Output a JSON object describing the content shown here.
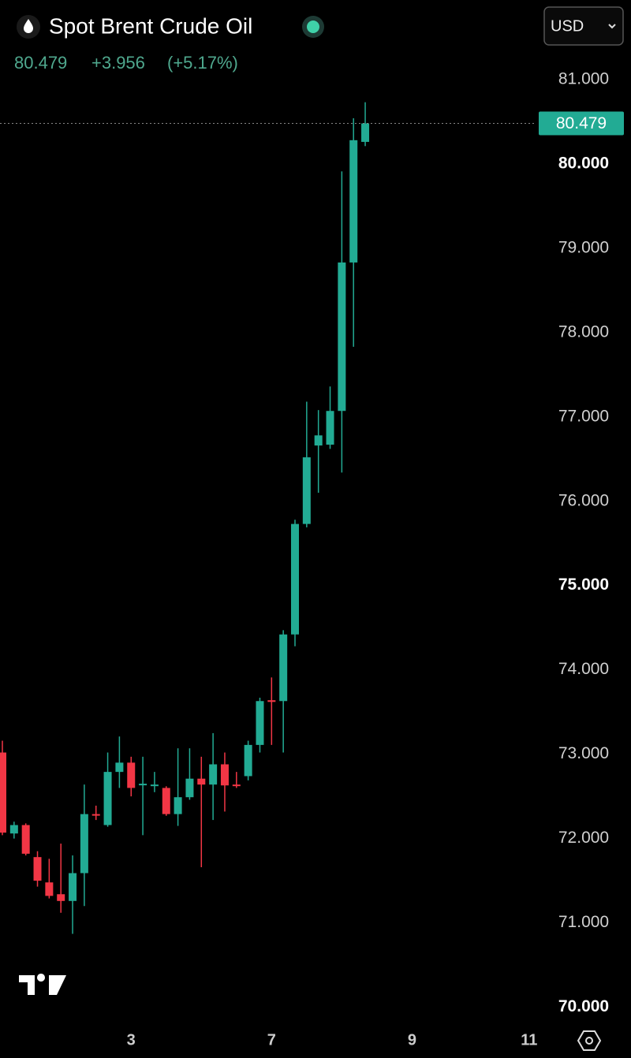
{
  "chart_data": {
    "type": "candlestick",
    "title": "Spot Brent Crude Oil",
    "last_price": 80.479,
    "change": {
      "value": 3.956,
      "label": "+3.956"
    },
    "change_pct": {
      "value": 5.17,
      "label": "(+5.17%)"
    },
    "currency": "USD",
    "up_color": "#22ab94",
    "down_color": "#f23645",
    "x": [
      0,
      1,
      2,
      3,
      4,
      5,
      6,
      7,
      8,
      9,
      10,
      11,
      12,
      13,
      14,
      15,
      16,
      17,
      18,
      19,
      20,
      21,
      22,
      23,
      24,
      25,
      26,
      27,
      28,
      29,
      30,
      31
    ],
    "open": [
      73.02,
      72.06,
      72.16,
      71.78,
      71.48,
      71.34,
      71.26,
      71.59,
      72.29,
      72.16,
      72.79,
      72.9,
      72.64,
      72.64,
      72.6,
      72.29,
      72.49,
      72.71,
      72.64,
      72.88,
      72.64,
      72.74,
      73.11,
      73.64,
      73.63,
      74.42,
      75.73,
      76.66,
      76.67,
      77.07,
      78.83,
      80.26
    ],
    "high": [
      73.16,
      72.2,
      72.18,
      71.85,
      71.76,
      71.94,
      71.8,
      72.64,
      72.39,
      73.02,
      73.21,
      72.97,
      72.97,
      72.79,
      72.62,
      73.07,
      73.07,
      72.97,
      73.25,
      73.02,
      72.79,
      73.16,
      73.67,
      73.91,
      74.47,
      75.78,
      77.18,
      77.08,
      77.36,
      79.91,
      80.54,
      80.73
    ],
    "low": [
      72.04,
      72.0,
      71.8,
      71.43,
      71.29,
      71.12,
      70.87,
      71.2,
      72.22,
      72.14,
      72.6,
      72.5,
      72.04,
      72.55,
      72.27,
      72.15,
      72.46,
      71.66,
      72.22,
      72.32,
      72.6,
      72.69,
      73.02,
      73.11,
      73.02,
      74.28,
      75.69,
      76.1,
      76.62,
      76.34,
      77.83,
      80.21
    ],
    "close": [
      72.07,
      72.16,
      71.82,
      71.5,
      71.32,
      71.26,
      71.59,
      72.29,
      72.28,
      72.79,
      72.9,
      72.6,
      72.65,
      72.64,
      72.29,
      72.49,
      72.71,
      72.64,
      72.88,
      72.63,
      72.63,
      73.11,
      73.63,
      73.62,
      74.42,
      75.73,
      76.52,
      76.78,
      77.07,
      78.83,
      80.28,
      80.479
    ],
    "xlim": [
      -0.2,
      45.6
    ],
    "xticks": [
      {
        "value": 11,
        "label": "3"
      },
      {
        "value": 23,
        "label": "7"
      },
      {
        "value": 35,
        "label": "9"
      },
      {
        "value": 45,
        "label": "11"
      }
    ],
    "ylim": [
      69.8,
      81.4
    ],
    "yticks": [
      {
        "value": 70,
        "label": "70.000"
      },
      {
        "value": 71,
        "label": "71.000"
      },
      {
        "value": 72,
        "label": "72.000"
      },
      {
        "value": 73,
        "label": "73.000"
      },
      {
        "value": 74,
        "label": "74.000"
      },
      {
        "value": 75,
        "label": "75.000"
      },
      {
        "value": 76,
        "label": "76.000"
      },
      {
        "value": 77,
        "label": "77.000"
      },
      {
        "value": 78,
        "label": "78.000"
      },
      {
        "value": 79,
        "label": "79.000"
      },
      {
        "value": 80,
        "label": "80.000"
      },
      {
        "value": 81,
        "label": "81.000"
      }
    ]
  }
}
